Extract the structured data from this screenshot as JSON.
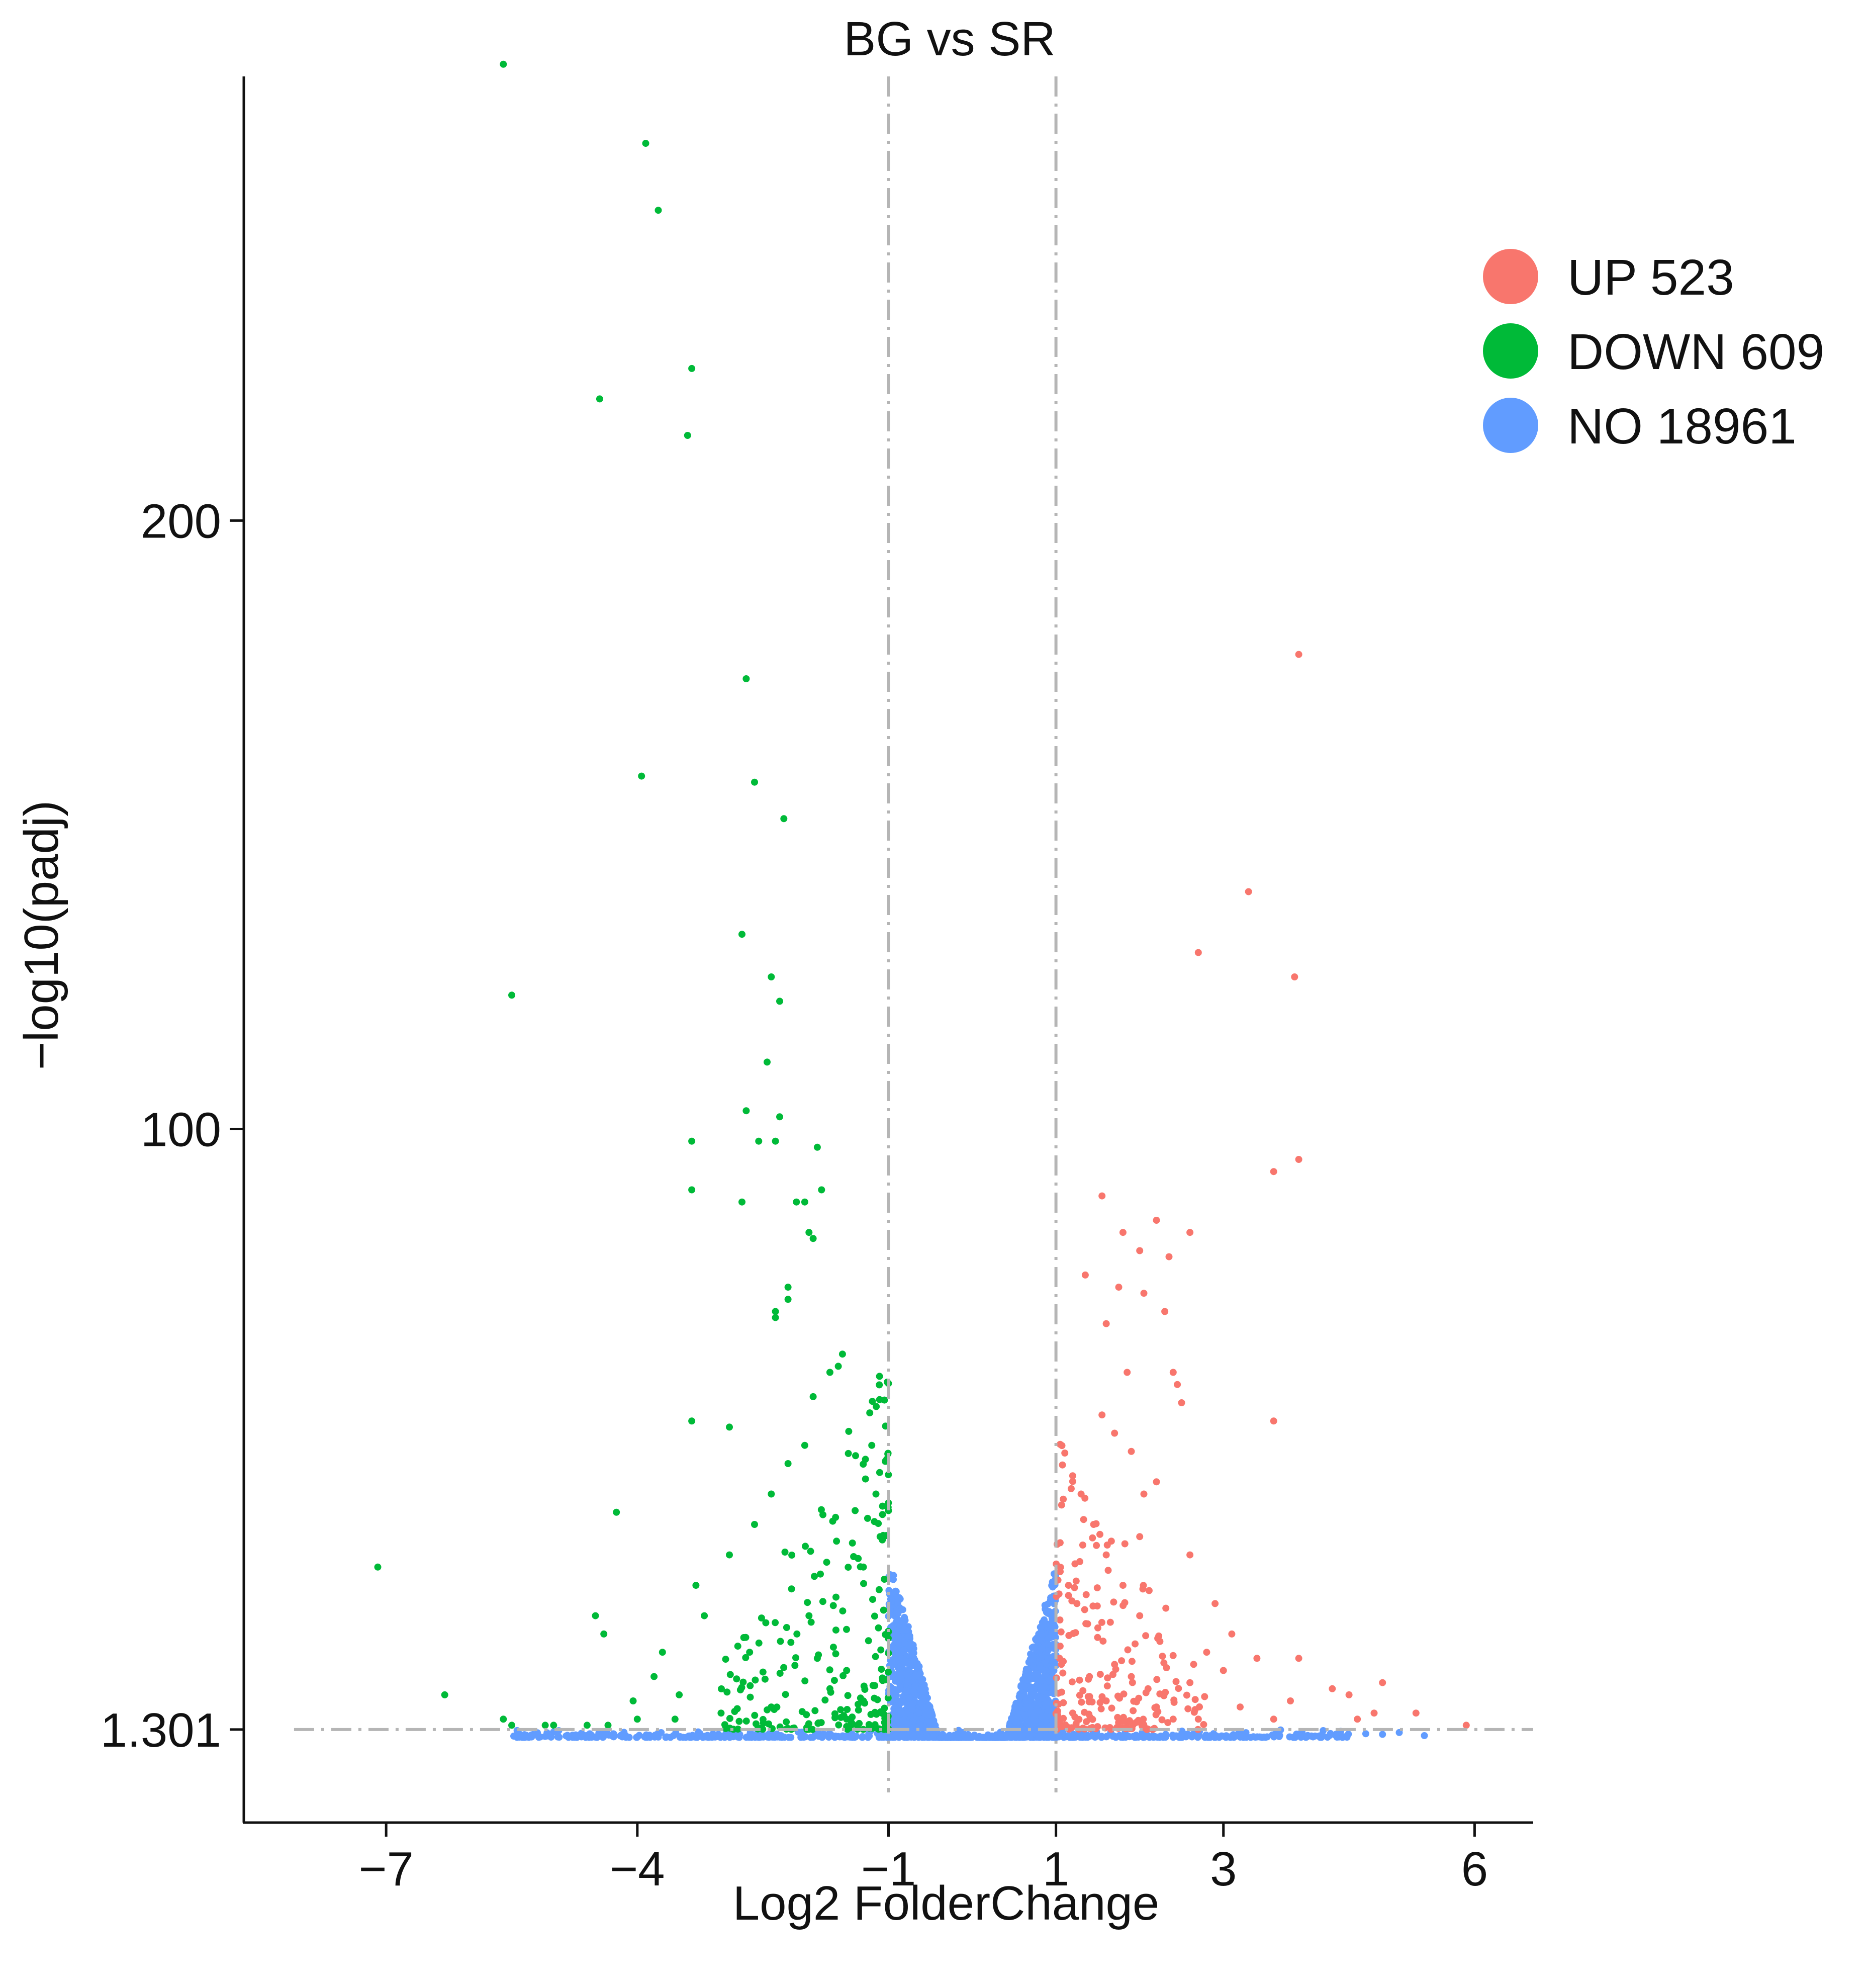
{
  "chart_data": {
    "type": "scatter",
    "title": "BG vs SR",
    "xlabel": "Log2 FolderChange",
    "ylabel": "−log10(padj)",
    "xlim": [
      -8.7,
      6.7
    ],
    "ylim": [
      -14,
      273
    ],
    "x_ticks": [
      {
        "value": -7,
        "label": "−7"
      },
      {
        "value": -4,
        "label": "−4"
      },
      {
        "value": -1,
        "label": "−1"
      },
      {
        "value": 1,
        "label": "1"
      },
      {
        "value": 3,
        "label": "3"
      },
      {
        "value": 6,
        "label": "6"
      }
    ],
    "y_ticks": [
      {
        "value": 1.301,
        "label": "1.301"
      },
      {
        "value": 100,
        "label": "100"
      },
      {
        "value": 200,
        "label": "200"
      }
    ],
    "thresholds": {
      "log2fc": [
        -1,
        1
      ],
      "padj_log": 1.301
    },
    "legend": {
      "position": "top-right",
      "items": [
        {
          "key": "up",
          "label": "UP 523"
        },
        {
          "key": "down",
          "label": "DOWN 609"
        },
        {
          "key": "no",
          "label": "NO 18961"
        }
      ]
    },
    "colors": {
      "up": "#F8766D",
      "down": "#00BA38",
      "no": "#619CFF"
    },
    "grid": false,
    "series": [
      {
        "name": "DOWN",
        "key": "down",
        "count": 609,
        "points": [
          [
            -5.6,
            275
          ],
          [
            -3.9,
            262
          ],
          [
            -3.75,
            251
          ],
          [
            -3.35,
            225
          ],
          [
            -4.45,
            220
          ],
          [
            -3.4,
            214
          ],
          [
            -2.7,
            174
          ],
          [
            -3.95,
            158
          ],
          [
            -2.6,
            157
          ],
          [
            -2.25,
            151
          ],
          [
            -2.75,
            132
          ],
          [
            -2.4,
            125
          ],
          [
            -5.5,
            122
          ],
          [
            -2.3,
            121
          ],
          [
            -2.45,
            111
          ],
          [
            -2.3,
            102
          ],
          [
            -2.7,
            103
          ],
          [
            -2.35,
            98
          ],
          [
            -2.55,
            98
          ],
          [
            -3.35,
            98
          ],
          [
            -1.85,
            97
          ],
          [
            -1.8,
            90
          ],
          [
            -3.35,
            90
          ],
          [
            -2.75,
            88
          ],
          [
            -2.1,
            88
          ],
          [
            -2.0,
            88
          ],
          [
            -1.9,
            82
          ],
          [
            -1.95,
            83
          ],
          [
            -2.2,
            74
          ],
          [
            -2.2,
            72
          ],
          [
            -2.35,
            70
          ],
          [
            -2.35,
            69
          ],
          [
            -1.55,
            63
          ],
          [
            -1.6,
            61
          ],
          [
            -1.7,
            60
          ],
          [
            -1.9,
            56
          ],
          [
            -3.35,
            52
          ],
          [
            -2.9,
            51
          ],
          [
            -4.25,
            37
          ],
          [
            -7.1,
            28
          ],
          [
            -4.5,
            20
          ],
          [
            -4.4,
            17
          ],
          [
            -6.3,
            7
          ],
          [
            -3.7,
            14
          ],
          [
            -3.8,
            10
          ],
          [
            -4.05,
            6
          ],
          [
            -3.55,
            3
          ],
          [
            -4.35,
            2
          ],
          [
            -5.1,
            2
          ],
          [
            -5.0,
            2
          ],
          [
            -5.6,
            3
          ],
          [
            -5.5,
            2
          ],
          [
            -2.9,
            30
          ],
          [
            -3.3,
            25
          ],
          [
            -3.2,
            20
          ],
          [
            -2.8,
            15
          ],
          [
            -2.6,
            35
          ],
          [
            -2.4,
            40
          ],
          [
            -2.2,
            45
          ],
          [
            -2.0,
            48
          ],
          [
            -1.95,
            20
          ],
          [
            -1.85,
            13
          ],
          [
            -1.7,
            8
          ],
          [
            -1.5,
            11
          ],
          [
            -1.3,
            28
          ],
          [
            -1.25,
            36
          ],
          [
            -1.15,
            40
          ],
          [
            -1.2,
            48
          ],
          [
            -1.1,
            33
          ],
          [
            -1.05,
            26
          ],
          [
            -1.12,
            18
          ],
          [
            -1.3,
            6
          ],
          [
            -1.5,
            3
          ],
          [
            -2.4,
            5
          ],
          [
            -3.0,
            4
          ],
          [
            -3.5,
            7
          ],
          [
            -4.0,
            3
          ],
          [
            -4.6,
            2
          ]
        ],
        "cluster": {
          "x_range": [
            -3.0,
            -1.0
          ],
          "y_range": [
            1.3,
            50
          ],
          "count": 531
        }
      },
      {
        "name": "UP",
        "key": "up",
        "count": 523,
        "points": [
          [
            3.9,
            178
          ],
          [
            3.3,
            139
          ],
          [
            2.7,
            129
          ],
          [
            3.85,
            125
          ],
          [
            3.9,
            95
          ],
          [
            3.6,
            93
          ],
          [
            1.55,
            89
          ],
          [
            1.8,
            83
          ],
          [
            2.2,
            85
          ],
          [
            2.6,
            83
          ],
          [
            2.0,
            80
          ],
          [
            2.35,
            79
          ],
          [
            1.35,
            76
          ],
          [
            1.75,
            74
          ],
          [
            2.05,
            73
          ],
          [
            2.3,
            70
          ],
          [
            1.6,
            68
          ],
          [
            1.85,
            60
          ],
          [
            2.4,
            60
          ],
          [
            2.45,
            58
          ],
          [
            2.5,
            55
          ],
          [
            1.55,
            53
          ],
          [
            1.7,
            50
          ],
          [
            1.9,
            47
          ],
          [
            2.05,
            40
          ],
          [
            2.2,
            42
          ],
          [
            3.6,
            52
          ],
          [
            1.2,
            43
          ],
          [
            1.3,
            40
          ],
          [
            1.45,
            35
          ],
          [
            1.6,
            30
          ],
          [
            1.8,
            25
          ],
          [
            2.0,
            33
          ],
          [
            2.6,
            30
          ],
          [
            2.9,
            22
          ],
          [
            3.1,
            17
          ],
          [
            3.4,
            13
          ],
          [
            3.9,
            13
          ],
          [
            4.3,
            8
          ],
          [
            4.9,
            9
          ],
          [
            5.3,
            4
          ],
          [
            5.9,
            2
          ],
          [
            4.6,
            3
          ],
          [
            4.8,
            4
          ],
          [
            4.5,
            7
          ],
          [
            3.2,
            5
          ],
          [
            3.6,
            3
          ],
          [
            3.8,
            6
          ],
          [
            2.6,
            9
          ],
          [
            2.8,
            14
          ],
          [
            3.0,
            11
          ],
          [
            2.2,
            5
          ],
          [
            1.05,
            32
          ],
          [
            1.15,
            25
          ],
          [
            1.25,
            22
          ],
          [
            1.5,
            18
          ],
          [
            1.05,
            15
          ],
          [
            1.7,
            12
          ],
          [
            1.9,
            10
          ],
          [
            2.1,
            8
          ],
          [
            2.4,
            3
          ],
          [
            2.7,
            3
          ],
          [
            2.0,
            20
          ],
          [
            1.4,
            10
          ],
          [
            1.6,
            6
          ],
          [
            1.2,
            4
          ]
        ],
        "cluster": {
          "x_range": [
            1.0,
            2.8
          ],
          "y_range": [
            1.3,
            40
          ],
          "count": 457
        }
      },
      {
        "name": "NO",
        "key": "no",
        "count": 18961,
        "clusters": [
          {
            "x_range": [
              -1.0,
              0.0
            ],
            "y_range": [
              0,
              30
            ],
            "shape": "decreasing",
            "count": 7000
          },
          {
            "x_range": [
              0.0,
              1.0
            ],
            "y_range": [
              0,
              28
            ],
            "shape": "increasing",
            "count": 7000
          },
          {
            "x_range": [
              -5.5,
              4.5
            ],
            "y_range": [
              0,
              1.3
            ],
            "shape": "flat",
            "count": 4900
          }
        ],
        "points": [
          [
            4.9,
            0.5
          ],
          [
            5.1,
            0.8
          ],
          [
            5.4,
            0.3
          ],
          [
            4.7,
            0.6
          ],
          [
            4.4,
            1.0
          ],
          [
            -5.2,
            0.4
          ],
          [
            -5.0,
            0.9
          ]
        ]
      }
    ]
  }
}
